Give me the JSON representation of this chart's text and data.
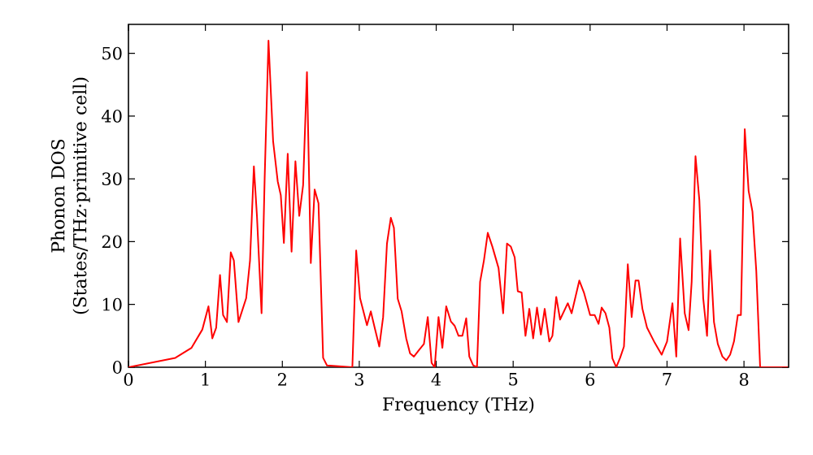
{
  "chart_data": {
    "type": "line",
    "xlabel": "Frequency (THz)",
    "ylabel": "Phonon DOS (States/THz·primitive cell)",
    "xlim": [
      0,
      8.58
    ],
    "ylim": [
      0,
      54.6
    ],
    "xticks": [
      0,
      1,
      2,
      3,
      4,
      5,
      6,
      7,
      8
    ],
    "yticks": [
      0,
      10,
      20,
      30,
      40,
      50
    ],
    "marker": "none",
    "line_style": "solid",
    "series": [
      {
        "color": "#ff0000",
        "x": [
          0,
          0.61,
          0.82,
          0.96,
          1.04,
          1.09,
          1.14,
          1.19,
          1.23,
          1.28,
          1.33,
          1.37,
          1.43,
          1.53,
          1.58,
          1.63,
          1.67,
          1.73,
          1.77,
          1.82,
          1.88,
          1.94,
          1.98,
          2.02,
          2.07,
          2.12,
          2.17,
          2.22,
          2.27,
          2.32,
          2.37,
          2.42,
          2.47,
          2.53,
          2.58,
          2.91,
          2.96,
          3.01,
          3.1,
          3.15,
          3.2,
          3.26,
          3.31,
          3.36,
          3.41,
          3.45,
          3.5,
          3.55,
          3.61,
          3.66,
          3.71,
          3.78,
          3.84,
          3.89,
          3.94,
          3.98,
          4.03,
          4.08,
          4.13,
          4.19,
          4.24,
          4.29,
          4.34,
          4.39,
          4.43,
          4.48,
          4.53,
          4.57,
          4.62,
          4.67,
          4.73,
          4.81,
          4.87,
          4.92,
          4.97,
          5.02,
          5.06,
          5.11,
          5.16,
          5.21,
          5.26,
          5.31,
          5.36,
          5.41,
          5.47,
          5.51,
          5.56,
          5.61,
          5.71,
          5.76,
          5.86,
          5.92,
          6.0,
          6.06,
          6.11,
          6.15,
          6.2,
          6.25,
          6.29,
          6.34,
          6.39,
          6.44,
          6.49,
          6.54,
          6.59,
          6.63,
          6.68,
          6.74,
          6.84,
          6.93,
          7.0,
          7.07,
          7.12,
          7.17,
          7.23,
          7.28,
          7.32,
          7.37,
          7.42,
          7.47,
          7.52,
          7.56,
          7.61,
          7.66,
          7.72,
          7.77,
          7.82,
          7.87,
          7.92,
          7.96,
          8.01,
          8.06,
          8.11,
          8.16,
          8.21,
          8.57
        ],
        "values": [
          0,
          1.5,
          3.1,
          6,
          9.7,
          4.6,
          6.3,
          14.7,
          8.3,
          7.2,
          18.3,
          17,
          7.2,
          11,
          17,
          32,
          24.1,
          8.6,
          30,
          52,
          36,
          29.6,
          27.4,
          19.8,
          34,
          18.4,
          32.8,
          24.1,
          29,
          47,
          16.6,
          28.3,
          26.1,
          1.5,
          0.3,
          0,
          18.6,
          11,
          6.7,
          8.9,
          6.3,
          3.3,
          8,
          19.7,
          23.8,
          22.2,
          10.9,
          8.9,
          4.6,
          2.2,
          1.7,
          2.8,
          3.7,
          8,
          0.7,
          0,
          8,
          3.1,
          9.7,
          7.3,
          6.6,
          5,
          5,
          7.8,
          1.7,
          0.3,
          0,
          13.6,
          17,
          21.4,
          19.2,
          15.8,
          8.6,
          19.7,
          19.2,
          17.5,
          12.1,
          11.9,
          5,
          9.3,
          4.6,
          9.5,
          5.2,
          9.3,
          4.1,
          5,
          11.2,
          7.6,
          10.2,
          8.6,
          13.8,
          11.9,
          8.3,
          8.3,
          6.9,
          9.5,
          8.6,
          6.3,
          1.4,
          0,
          1.5,
          3.3,
          16.4,
          8,
          13.8,
          13.8,
          9.3,
          6.3,
          3.9,
          2,
          4.1,
          10.2,
          1.7,
          20.5,
          8.6,
          5.9,
          13.6,
          33.6,
          26.6,
          11,
          5,
          18.6,
          7.2,
          3.7,
          1.7,
          1.1,
          2,
          4.1,
          8.3,
          8.3,
          37.9,
          28.1,
          24.8,
          15.3,
          0,
          0
        ]
      }
    ]
  }
}
